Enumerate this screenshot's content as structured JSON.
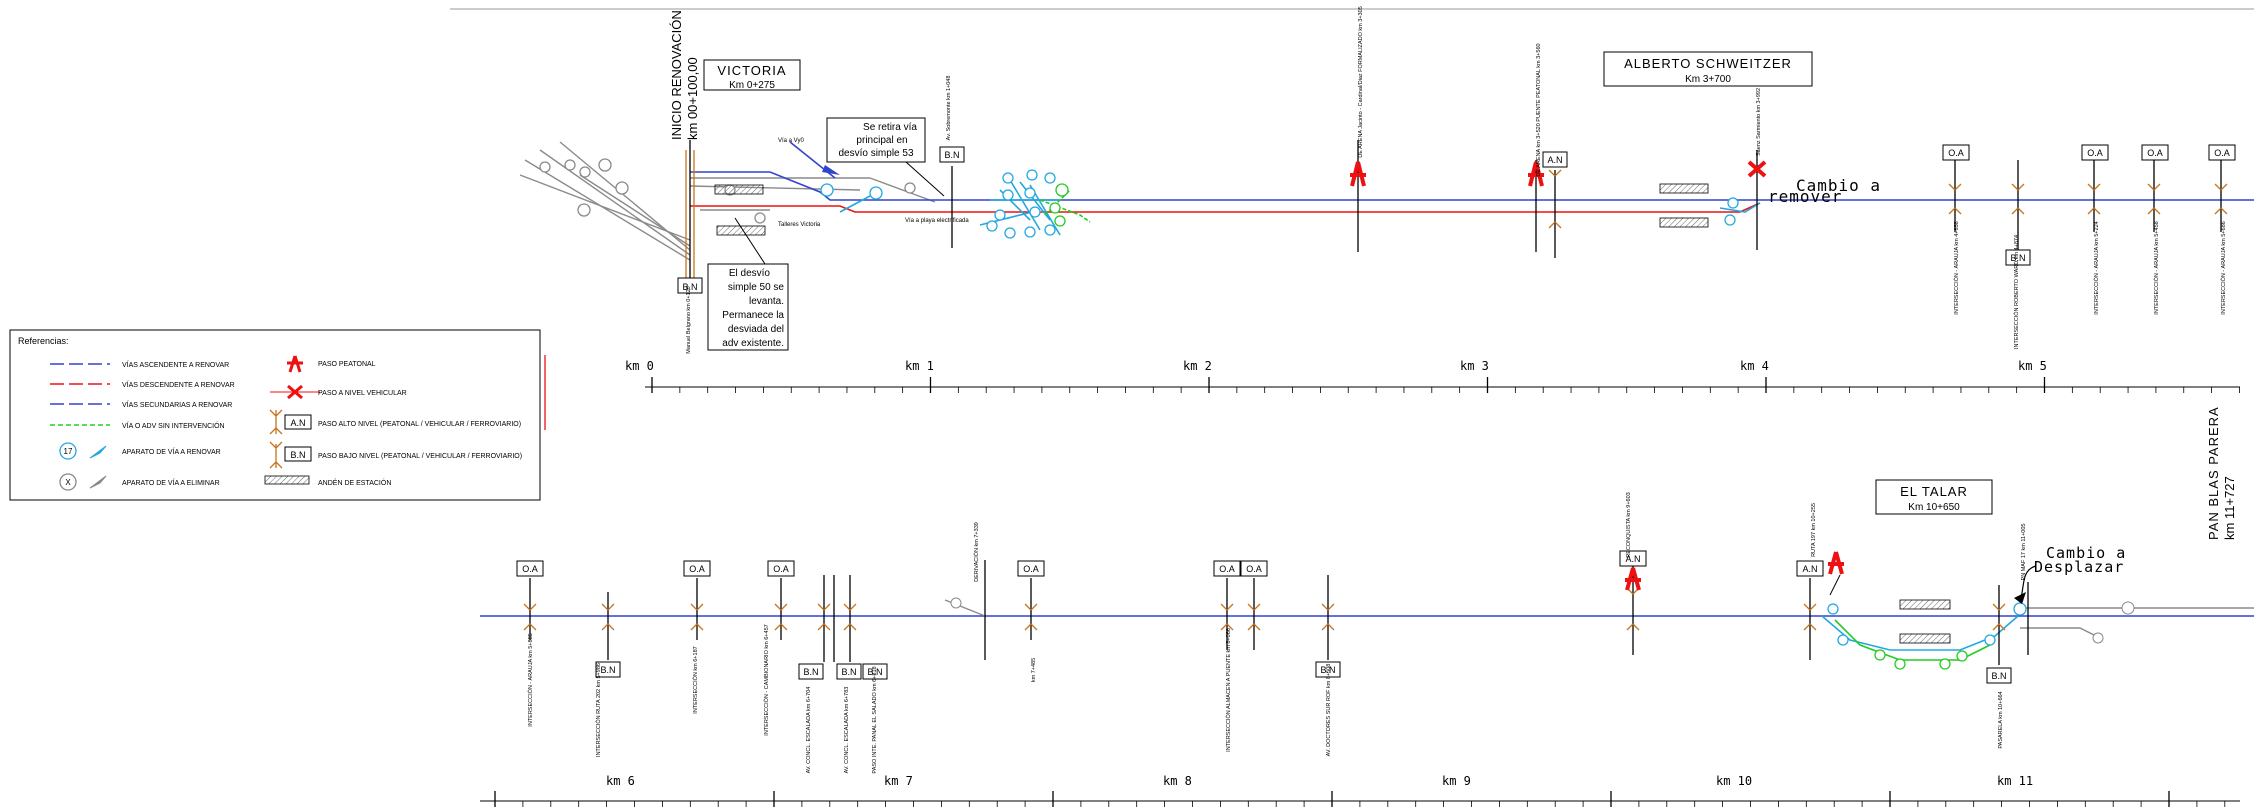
{
  "title_pan": "PAN BLAS PARERA",
  "title_pan_km": "km 11+727",
  "stations": [
    {
      "name": "VICTORIA",
      "km": "Km 0+275"
    },
    {
      "name": "ALBERTO SCHWEITZER",
      "km": "Km 3+700"
    },
    {
      "name": "EL TALAR",
      "km": "Km 10+650"
    }
  ],
  "notes": {
    "start_label": "INICIO RENOVACIÓN",
    "start_km": "km 00+100,00",
    "retira_lines": [
      "Se retira vía",
      "principal en",
      "desvío simple 53"
    ],
    "desvio50_lines": [
      "El desvío",
      "simple 50 se",
      "levanta.",
      "Permanece la",
      "desviada del",
      "adv existente."
    ],
    "cambio_remover_lines": [
      "Cambio a",
      "remover"
    ],
    "cambio_desplazar_lines": [
      "Cambio a",
      "Desplazar"
    ],
    "via_a_vy0": "Vía a Vy0",
    "talleres": "Talleres Victoria",
    "via_playa": "Vía a playa electrificada"
  },
  "km_axis_top": [
    "km 0",
    "km 1",
    "km 2",
    "km 3",
    "km 4",
    "km 5"
  ],
  "km_axis_bottom": [
    "km 6",
    "km 7",
    "km 8",
    "km 9",
    "km 10",
    "km 11"
  ],
  "tags": {
    "oa": "O.A",
    "bn": "B.N",
    "an": "A.N"
  },
  "top_crossings": [
    "Manuel Belgrano km 0+120",
    "Av. Sobremonte km 1+048",
    "DE ARENA Jacinto - Cardinal/Diaz FORMALIZADO km 3+305",
    "DE ARENA km 3+520 PUENTE PEATONAL km 3+560",
    "Sáenz Sarmiento km 3+992",
    "INTERSECCIÓN - ARAUJA km 4+658",
    "INTERSECCIÓN ROBERTO WARD km 4+874",
    "INTERSECCIÓN - ARAUJA km 5+224",
    "INTERSECCIÓN - ARAUJA km 5+458",
    "INTERSECCIÓN - ARAUJA km 5+686"
  ],
  "bottom_crossings": [
    "INTERSECCIÓN - ARAUJA km 5+885",
    "INTERSECCIÓN RUTA 202 km 5+986",
    "INTERSECCIÓN km 6+187",
    "INTERSECCIÓN - CAMBIONARIO km 6+457",
    "AV. CONCL. ESCALADA km 6+704",
    "AV. CONCL. ESCALADA km 6+783",
    "PASO INTE. PANAL EL SALADO km 6+818",
    "DERIVACIÓN km 7+339",
    "km 7+485",
    "INTERSECCIÓN ALMACEN A PUENTE km 8+066",
    "AV. DOCTORES SUR ROF km 8+508",
    "RECONQUISTA km 9+603",
    "RUTA 197 km 10+255",
    "PASARELA km 10+664",
    "PN MAF 17 km 11+005"
  ],
  "legend": {
    "title": "Referencias:",
    "items": [
      {
        "label": "VÍAS ASCENDENTE A RENOVAR"
      },
      {
        "label": "VÍAS DESCENDENTE A RENOVAR"
      },
      {
        "label": "VÍAS SECUNDARIAS A RENOVAR"
      },
      {
        "label": "VÍA O ADV SIN INTERVENCIÓN"
      },
      {
        "label": "APARATO DE VÍA A RENOVAR",
        "symbol": "17"
      },
      {
        "label": "APARATO DE VÍA A ELIMINAR",
        "symbol": "X"
      },
      {
        "label": "PASO PEATONAL"
      },
      {
        "label": "PASO A NIVEL VEHICULAR"
      },
      {
        "label": "PASO ALTO NIVEL (PEATONAL / VEHICULAR / FERROVIARIO)",
        "symbol": "A.N"
      },
      {
        "label": "PASO BAJO NIVEL (PEATONAL / VEHICULAR / FERROVIARIO)",
        "symbol": "B.N"
      },
      {
        "label": "ANDÉN DE ESTACIÓN"
      }
    ]
  },
  "colors": {
    "blue": "#3344cc",
    "red": "#ee1111",
    "cyan": "#22a8e0",
    "green": "#22cc22",
    "grey": "#8a8a8a",
    "orange": "#c8741e"
  }
}
